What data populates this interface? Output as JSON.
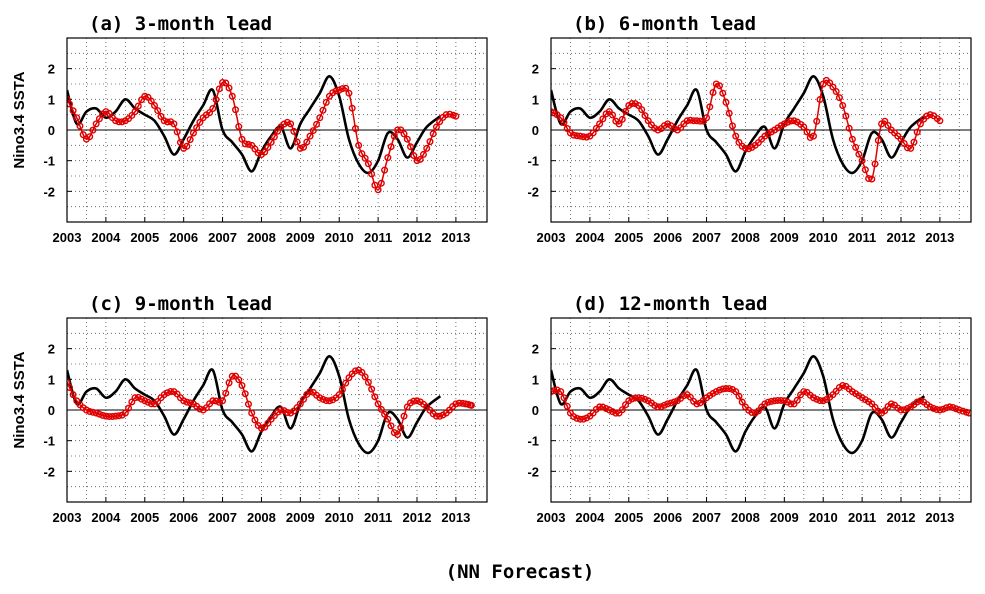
{
  "figure": {
    "caption": "(NN Forecast)"
  },
  "axes_common": {
    "ylabel": "Nino3.4 SSTA",
    "xlim": [
      2003,
      2013.8
    ],
    "ylim": [
      -3,
      3
    ],
    "xticks": [
      2003,
      2004,
      2005,
      2006,
      2007,
      2008,
      2009,
      2010,
      2011,
      2012,
      2013
    ],
    "yticks": [
      -2,
      -1,
      0,
      1,
      2
    ],
    "grid": true,
    "zero_line": true
  },
  "observed": {
    "color": "#000000",
    "x": [
      2003.0,
      2003.25,
      2003.5,
      2003.75,
      2004.0,
      2004.25,
      2004.5,
      2004.75,
      2005.0,
      2005.25,
      2005.5,
      2005.75,
      2006.0,
      2006.25,
      2006.5,
      2006.75,
      2007.0,
      2007.25,
      2007.5,
      2007.75,
      2008.0,
      2008.25,
      2008.5,
      2008.75,
      2009.0,
      2009.25,
      2009.5,
      2009.75,
      2010.0,
      2010.25,
      2010.5,
      2010.75,
      2011.0,
      2011.25,
      2011.5,
      2011.75,
      2012.0,
      2012.25,
      2012.6
    ],
    "y": [
      1.3,
      0.2,
      0.6,
      0.7,
      0.4,
      0.6,
      1.0,
      0.7,
      0.5,
      0.3,
      -0.2,
      -0.8,
      -0.3,
      0.3,
      0.8,
      1.3,
      0.0,
      -0.4,
      -0.8,
      -1.35,
      -0.7,
      -0.2,
      0.1,
      -0.6,
      0.2,
      0.7,
      1.2,
      1.75,
      1.1,
      -0.3,
      -1.1,
      -1.4,
      -1.0,
      -0.1,
      -0.3,
      -0.9,
      -0.4,
      0.1,
      0.45
    ]
  },
  "panels": [
    {
      "title": "(a) 3-month lead",
      "forecast": {
        "color": "#e00000",
        "x": [
          2003.0,
          2003.25,
          2003.5,
          2003.75,
          2004.0,
          2004.25,
          2004.5,
          2004.75,
          2005.0,
          2005.25,
          2005.5,
          2005.75,
          2006.0,
          2006.25,
          2006.5,
          2006.75,
          2007.0,
          2007.25,
          2007.5,
          2007.75,
          2008.0,
          2008.25,
          2008.5,
          2008.75,
          2009.0,
          2009.25,
          2009.5,
          2009.75,
          2010.0,
          2010.25,
          2010.5,
          2010.75,
          2011.0,
          2011.25,
          2011.5,
          2011.75,
          2012.0,
          2012.25,
          2012.5,
          2012.75,
          2013.0
        ],
        "y": [
          1.0,
          0.4,
          -0.3,
          0.2,
          0.6,
          0.3,
          0.3,
          0.6,
          1.1,
          0.8,
          0.3,
          0.2,
          -0.6,
          -0.1,
          0.4,
          0.7,
          1.55,
          1.1,
          -0.3,
          -0.5,
          -0.8,
          -0.4,
          0.1,
          0.2,
          -0.6,
          -0.2,
          0.4,
          1.1,
          1.3,
          1.2,
          -0.5,
          -1.1,
          -1.95,
          -0.9,
          0.0,
          -0.3,
          -1.0,
          -0.6,
          0.1,
          0.5,
          0.45
        ]
      }
    },
    {
      "title": "(b) 6-month lead",
      "forecast": {
        "color": "#e00000",
        "x": [
          2003.0,
          2003.25,
          2003.5,
          2003.75,
          2004.0,
          2004.25,
          2004.5,
          2004.75,
          2005.0,
          2005.25,
          2005.5,
          2005.75,
          2006.0,
          2006.25,
          2006.5,
          2006.75,
          2007.0,
          2007.25,
          2007.5,
          2007.75,
          2008.0,
          2008.25,
          2008.5,
          2008.75,
          2009.0,
          2009.25,
          2009.5,
          2009.75,
          2010.0,
          2010.25,
          2010.5,
          2010.75,
          2011.0,
          2011.25,
          2011.5,
          2011.75,
          2012.0,
          2012.25,
          2012.5,
          2012.75,
          2013.0
        ],
        "y": [
          0.6,
          0.4,
          -0.1,
          -0.2,
          -0.2,
          0.2,
          0.6,
          0.2,
          0.8,
          0.8,
          0.3,
          0.0,
          0.2,
          0.0,
          0.3,
          0.3,
          0.4,
          1.5,
          0.9,
          -0.2,
          -0.6,
          -0.5,
          -0.2,
          0.0,
          0.2,
          0.3,
          0.1,
          -0.2,
          1.5,
          1.4,
          0.8,
          -0.3,
          -1.0,
          -1.6,
          0.2,
          0.0,
          -0.3,
          -0.6,
          0.2,
          0.5,
          0.3
        ]
      }
    },
    {
      "title": "(c) 9-month lead",
      "forecast": {
        "color": "#e00000",
        "x": [
          2003.0,
          2003.25,
          2003.5,
          2003.75,
          2004.0,
          2004.25,
          2004.5,
          2004.75,
          2005.0,
          2005.25,
          2005.5,
          2005.75,
          2006.0,
          2006.25,
          2006.5,
          2006.75,
          2007.0,
          2007.25,
          2007.5,
          2007.75,
          2008.0,
          2008.25,
          2008.5,
          2008.75,
          2009.0,
          2009.25,
          2009.5,
          2009.75,
          2010.0,
          2010.25,
          2010.5,
          2010.75,
          2011.0,
          2011.25,
          2011.5,
          2011.75,
          2012.0,
          2012.25,
          2012.5,
          2012.75,
          2013.0,
          2013.25,
          2013.4
        ],
        "y": [
          0.9,
          0.3,
          0.0,
          -0.1,
          -0.2,
          -0.2,
          -0.1,
          0.4,
          0.3,
          0.2,
          0.5,
          0.6,
          0.3,
          0.2,
          0.0,
          0.3,
          0.3,
          1.1,
          0.8,
          -0.1,
          -0.6,
          -0.3,
          0.0,
          -0.1,
          0.2,
          0.6,
          0.4,
          0.3,
          0.5,
          1.05,
          1.3,
          0.9,
          0.2,
          -0.3,
          -0.8,
          0.1,
          0.3,
          0.1,
          -0.2,
          -0.1,
          0.2,
          0.2,
          0.15
        ]
      }
    },
    {
      "title": "(d) 12-month lead",
      "forecast": {
        "color": "#e00000",
        "x": [
          2003.0,
          2003.25,
          2003.5,
          2003.75,
          2004.0,
          2004.25,
          2004.5,
          2004.75,
          2005.0,
          2005.25,
          2005.5,
          2005.75,
          2006.0,
          2006.25,
          2006.5,
          2006.75,
          2007.0,
          2007.25,
          2007.5,
          2007.75,
          2008.0,
          2008.25,
          2008.5,
          2008.75,
          2009.0,
          2009.25,
          2009.5,
          2009.75,
          2010.0,
          2010.25,
          2010.5,
          2010.75,
          2011.0,
          2011.25,
          2011.5,
          2011.75,
          2012.0,
          2012.25,
          2012.5,
          2012.75,
          2013.0,
          2013.25,
          2013.5,
          2013.75
        ],
        "y": [
          0.6,
          0.6,
          -0.1,
          -0.3,
          -0.2,
          0.1,
          0.0,
          -0.1,
          0.3,
          0.4,
          0.3,
          0.1,
          0.2,
          0.3,
          0.5,
          0.2,
          0.4,
          0.6,
          0.7,
          0.6,
          0.1,
          -0.1,
          0.2,
          0.3,
          0.3,
          0.2,
          0.6,
          0.4,
          0.3,
          0.5,
          0.8,
          0.6,
          0.4,
          0.2,
          -0.1,
          0.2,
          0.0,
          0.1,
          0.3,
          0.1,
          0.0,
          0.1,
          0.0,
          -0.1
        ]
      }
    }
  ]
}
